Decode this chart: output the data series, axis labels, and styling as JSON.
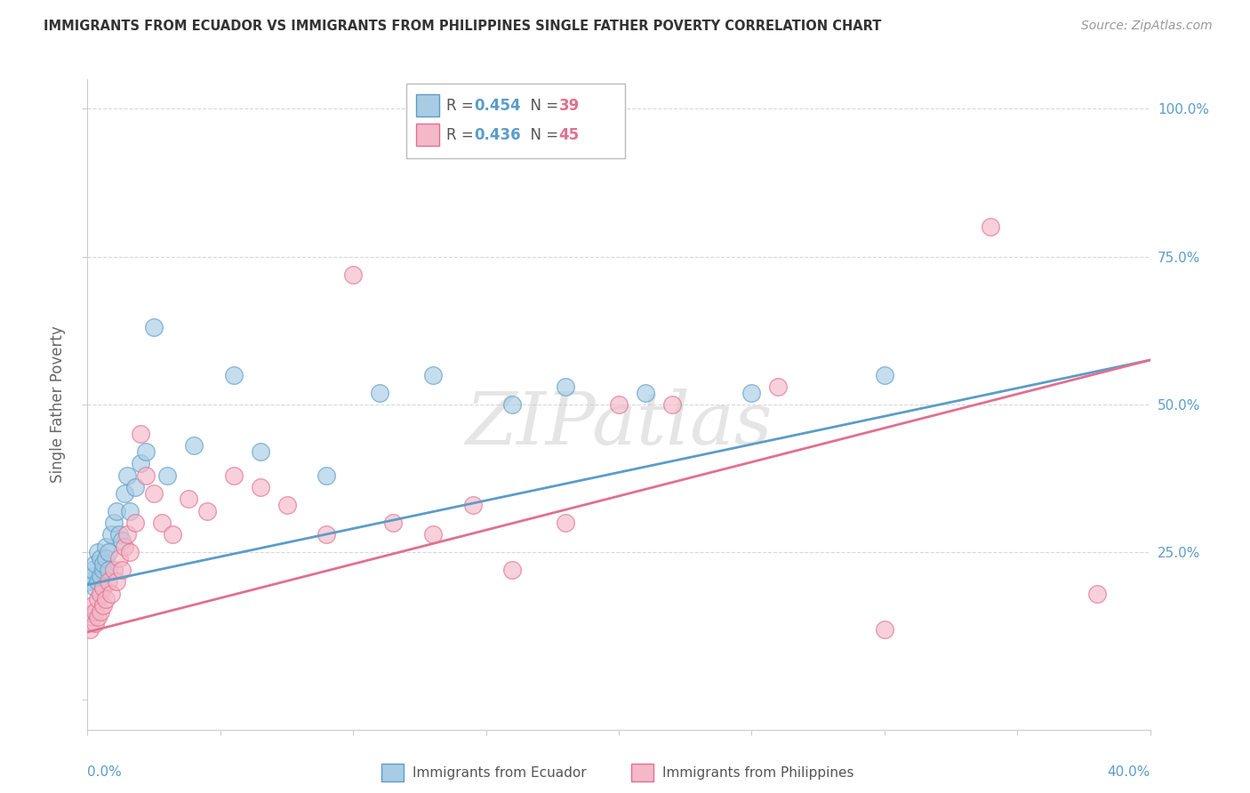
{
  "title": "IMMIGRANTS FROM ECUADOR VS IMMIGRANTS FROM PHILIPPINES SINGLE FATHER POVERTY CORRELATION CHART",
  "source": "Source: ZipAtlas.com",
  "ylabel": "Single Father Poverty",
  "legend1_r": "0.454",
  "legend1_n": "39",
  "legend2_r": "0.436",
  "legend2_n": "45",
  "ecuador_color": "#a8cce4",
  "philippines_color": "#f4b8c8",
  "ecuador_edge_color": "#5b9dc9",
  "philippines_edge_color": "#e07090",
  "ecuador_line_color": "#5b9dc9",
  "philippines_line_color": "#e07090",
  "r_color": "#5b9dc9",
  "n_color": "#e07090",
  "watermark": "ZIPatlas",
  "ecuador_x": [
    0.001,
    0.002,
    0.002,
    0.003,
    0.003,
    0.004,
    0.004,
    0.005,
    0.005,
    0.006,
    0.006,
    0.007,
    0.007,
    0.008,
    0.008,
    0.009,
    0.01,
    0.011,
    0.012,
    0.013,
    0.014,
    0.015,
    0.016,
    0.018,
    0.02,
    0.022,
    0.025,
    0.03,
    0.04,
    0.055,
    0.065,
    0.09,
    0.11,
    0.13,
    0.16,
    0.18,
    0.21,
    0.25,
    0.3
  ],
  "ecuador_y": [
    0.2,
    0.21,
    0.22,
    0.19,
    0.23,
    0.2,
    0.25,
    0.21,
    0.24,
    0.22,
    0.23,
    0.26,
    0.24,
    0.22,
    0.25,
    0.28,
    0.3,
    0.32,
    0.28,
    0.27,
    0.35,
    0.38,
    0.32,
    0.36,
    0.4,
    0.42,
    0.63,
    0.38,
    0.43,
    0.55,
    0.42,
    0.38,
    0.52,
    0.55,
    0.5,
    0.53,
    0.52,
    0.52,
    0.55
  ],
  "philippines_x": [
    0.001,
    0.002,
    0.002,
    0.003,
    0.003,
    0.004,
    0.004,
    0.005,
    0.005,
    0.006,
    0.006,
    0.007,
    0.008,
    0.009,
    0.01,
    0.011,
    0.012,
    0.013,
    0.014,
    0.015,
    0.016,
    0.018,
    0.02,
    0.022,
    0.025,
    0.028,
    0.032,
    0.038,
    0.045,
    0.055,
    0.065,
    0.075,
    0.09,
    0.1,
    0.115,
    0.13,
    0.145,
    0.16,
    0.18,
    0.2,
    0.22,
    0.26,
    0.3,
    0.34,
    0.38
  ],
  "philippines_y": [
    0.12,
    0.14,
    0.16,
    0.13,
    0.15,
    0.14,
    0.17,
    0.15,
    0.18,
    0.16,
    0.19,
    0.17,
    0.2,
    0.18,
    0.22,
    0.2,
    0.24,
    0.22,
    0.26,
    0.28,
    0.25,
    0.3,
    0.45,
    0.38,
    0.35,
    0.3,
    0.28,
    0.34,
    0.32,
    0.38,
    0.36,
    0.33,
    0.28,
    0.72,
    0.3,
    0.28,
    0.33,
    0.22,
    0.3,
    0.5,
    0.5,
    0.53,
    0.12,
    0.8,
    0.18
  ],
  "ec_line_x0": 0.0,
  "ec_line_y0": 0.195,
  "ec_line_x1": 0.4,
  "ec_line_y1": 0.575,
  "ph_line_x0": 0.0,
  "ph_line_y0": 0.115,
  "ph_line_x1": 0.4,
  "ph_line_y1": 0.575,
  "xlim": [
    0.0,
    0.4
  ],
  "ylim": [
    -0.05,
    1.05
  ],
  "right_ytick_labels": [
    "25.0%",
    "50.0%",
    "75.0%",
    "100.0%"
  ],
  "right_ytick_vals": [
    0.25,
    0.5,
    0.75,
    1.0
  ],
  "grid_color": "#d8d8d8",
  "background_color": "#ffffff"
}
